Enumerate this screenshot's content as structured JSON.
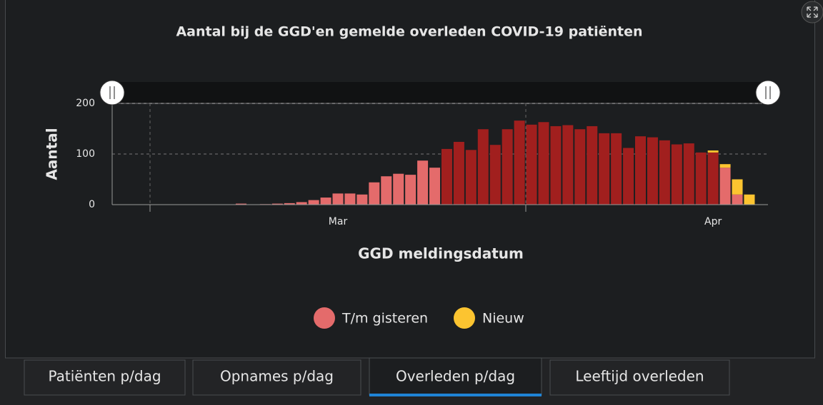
{
  "chart_data": {
    "type": "bar",
    "title": "Aantal bij de GGD'en gemelde overleden COVID-19 patiënten",
    "ylabel": "Aantal",
    "xlabel": "GGD meldingsdatum",
    "categories": [
      null,
      null,
      null,
      null,
      null,
      null,
      null,
      null,
      null,
      null,
      null,
      null,
      null,
      null,
      null,
      null,
      null,
      null,
      "Mar",
      null,
      null,
      null,
      null,
      null,
      null,
      null,
      null,
      null,
      null,
      null,
      null,
      null,
      null,
      null,
      null,
      null,
      null,
      null,
      null,
      null,
      null,
      null,
      null,
      null,
      null,
      null,
      null,
      null,
      null,
      "Apr",
      null,
      null,
      null
    ],
    "series": [
      {
        "name": "T/m gisteren",
        "color": "#e46b6b",
        "values": [
          0,
          0,
          0,
          0,
          0,
          0,
          0,
          0,
          0,
          0,
          2,
          0,
          1,
          2,
          3,
          5,
          9,
          14,
          22,
          22,
          20,
          44,
          56,
          61,
          59,
          87,
          73,
          110,
          124,
          108,
          149,
          118,
          149,
          166,
          158,
          163,
          155,
          157,
          149,
          155,
          141,
          141,
          112,
          135,
          133,
          127,
          119,
          121,
          103,
          103,
          73,
          20,
          0
        ]
      },
      {
        "name": "Nieuw",
        "color": "#fcc430",
        "values": [
          0,
          0,
          0,
          0,
          0,
          0,
          0,
          0,
          0,
          0,
          0,
          0,
          0,
          0,
          0,
          0,
          0,
          0,
          0,
          0,
          0,
          0,
          0,
          0,
          0,
          0,
          0,
          0,
          0,
          0,
          0,
          0,
          0,
          0,
          0,
          0,
          0,
          0,
          0,
          0,
          0,
          0,
          0,
          0,
          0,
          0,
          0,
          0,
          0,
          4,
          7,
          30,
          20
        ]
      }
    ],
    "highlight": {
      "color": "#a11f1e",
      "start": 27,
      "end": 49
    },
    "stacked": true,
    "ylim": [
      0,
      200
    ],
    "yticks": [
      0,
      100,
      200
    ],
    "grid": true,
    "legend": "bottom"
  },
  "tabs": [
    "Patiënten p/dag",
    "Opnames p/dag",
    "Overleden p/dag",
    "Leeftijd overleden"
  ],
  "active_tab": 2
}
